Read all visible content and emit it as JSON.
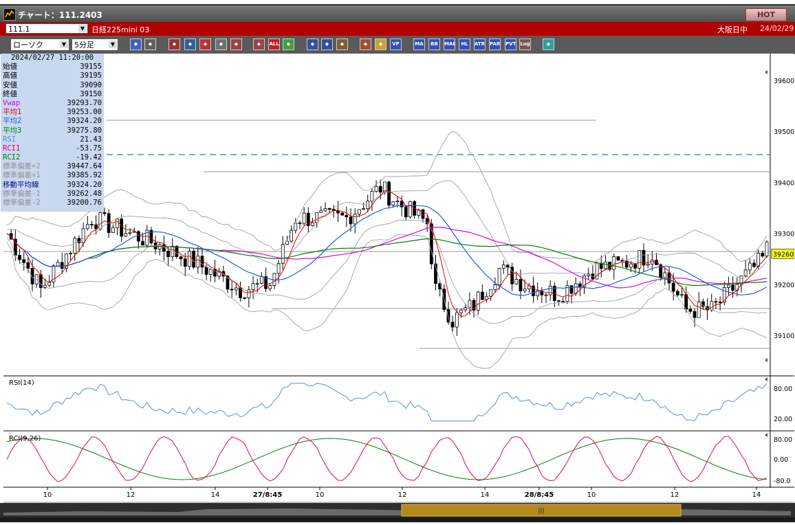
{
  "window": {
    "title": "チャート：111.2403",
    "hot_label": "HOT"
  },
  "symbol_bar": {
    "code": "111.1",
    "name": "日経225mini 03",
    "market": "大阪日中",
    "date": "24/02/29"
  },
  "toolbar": {
    "chart_type": "ローソク",
    "interval": "5分足",
    "buttons": [
      "zoom",
      "cursor",
      "buy-sell",
      "trend",
      "fill",
      "ind",
      "candle-a",
      "candle-b",
      "all",
      "draw",
      "arrow",
      "arrow2",
      "gear",
      "wrench",
      "color",
      "vp",
      "ma",
      "bb",
      "mae",
      "hl",
      "atr",
      "para",
      "pvt",
      "log",
      "exit"
    ],
    "text_buttons": {
      "all": "ALL",
      "vp": "VP",
      "ma": "MA",
      "bb": "BB",
      "mae": "MAE",
      "hl": "HL",
      "atr": "ATR",
      "para": "PARA",
      "pvt": "PVT",
      "log": "Log"
    }
  },
  "info_panel": {
    "timestamp": "2024/02/27  11:20:00",
    "rows": [
      {
        "label": "始値",
        "value": "39155",
        "color": "#000000"
      },
      {
        "label": "高値",
        "value": "39195",
        "color": "#000000"
      },
      {
        "label": "安値",
        "value": "39090",
        "color": "#000000"
      },
      {
        "label": "終値",
        "value": "39150",
        "color": "#000000"
      },
      {
        "label": "Vwap",
        "value": "39293.70",
        "color": "#e000e0"
      },
      {
        "label": "平均1",
        "value": "39253.00",
        "color": "#e00000"
      },
      {
        "label": "平均2",
        "value": "39324.20",
        "color": "#1a5fe0"
      },
      {
        "label": "平均3",
        "value": "39275.80",
        "color": "#008000"
      },
      {
        "label": "RSI",
        "value": "21.43",
        "color": "#5a8ce0"
      },
      {
        "label": "RCI1",
        "value": "-53.75",
        "color": "#e0006a"
      },
      {
        "label": "RCI2",
        "value": "-19.42",
        "color": "#008000"
      },
      {
        "label": "標準偏差+2",
        "value": "39447.64",
        "color": "#909090"
      },
      {
        "label": "標準偏差+1",
        "value": "39385.92",
        "color": "#909090"
      },
      {
        "label": "移動平均線",
        "value": "39324.20",
        "color": "#00008b"
      },
      {
        "label": "標準偏差-1",
        "value": "39262.48",
        "color": "#909090"
      },
      {
        "label": "標準偏差-2",
        "value": "39200.76",
        "color": "#909090"
      }
    ]
  },
  "price_axis": {
    "ticks": [
      "39600",
      "39500",
      "39400",
      "39300",
      "39200",
      "39100"
    ],
    "current": "39260"
  },
  "rsi_panel": {
    "label": "RSI(14)",
    "ticks": [
      "80.00",
      "20.00"
    ]
  },
  "rci_panel": {
    "label": "RCI(9,26)",
    "ticks": [
      "80.00",
      "0.00",
      "-80.0"
    ]
  },
  "time_axis": {
    "labels": [
      "10",
      "12",
      "14",
      "27/8:45",
      "10",
      "12",
      "14",
      "28/8:45",
      "10",
      "12",
      "14"
    ]
  },
  "colors": {
    "vwap": "#e000e0",
    "ma_short": "#e00000",
    "ma_mid": "#1a5fe0",
    "ma_long": "#008000",
    "bands": "#a0a0a0",
    "rsi": "#5a8ce0",
    "rci_fast": "#e0006a",
    "rci_slow": "#008000",
    "up_candle": "#ffffff",
    "down_candle": "#000000",
    "dashed_level": "#1f7ea8"
  }
}
